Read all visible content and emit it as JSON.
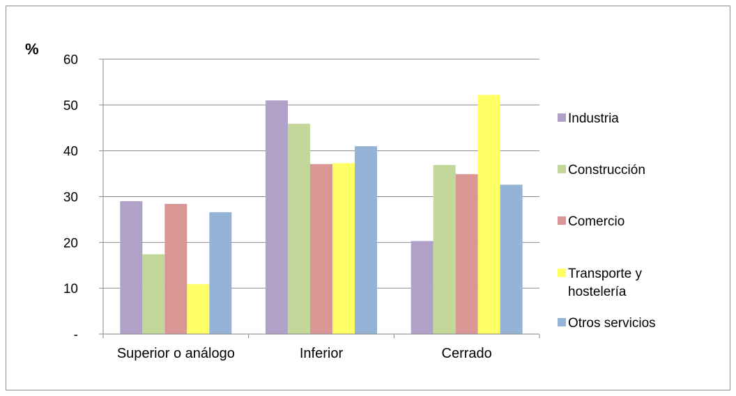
{
  "chart_data": {
    "type": "bar",
    "unit_label": "%",
    "categories": [
      "Superior o análogo",
      "Inferior",
      "Cerrado"
    ],
    "series": [
      {
        "name": "Industria",
        "color": "#B1A0C7",
        "values": [
          29,
          51,
          20.3
        ]
      },
      {
        "name": "Construcción",
        "color": "#C4D79B",
        "values": [
          17.4,
          45.9,
          36.9
        ]
      },
      {
        "name": "Comercio",
        "color": "#DA9694",
        "values": [
          28.4,
          37.1,
          34.9
        ]
      },
      {
        "name": "Transporte y hostelería",
        "color": "#FFFF66",
        "values": [
          10.9,
          37.3,
          52.2
        ]
      },
      {
        "name": "Otros servicios",
        "color": "#95B3D7",
        "values": [
          26.6,
          41,
          32.6
        ]
      }
    ],
    "yticks": [
      "-",
      "10",
      "20",
      "30",
      "40",
      "50",
      "60"
    ],
    "ylim": [
      0,
      60
    ],
    "grid": true,
    "legend_position": "right"
  },
  "legend_lines": [
    [
      "Industria"
    ],
    [
      "Construcción"
    ],
    [
      "Comercio"
    ],
    [
      "Transporte y",
      "hostelería"
    ],
    [
      "Otros servicios"
    ]
  ]
}
